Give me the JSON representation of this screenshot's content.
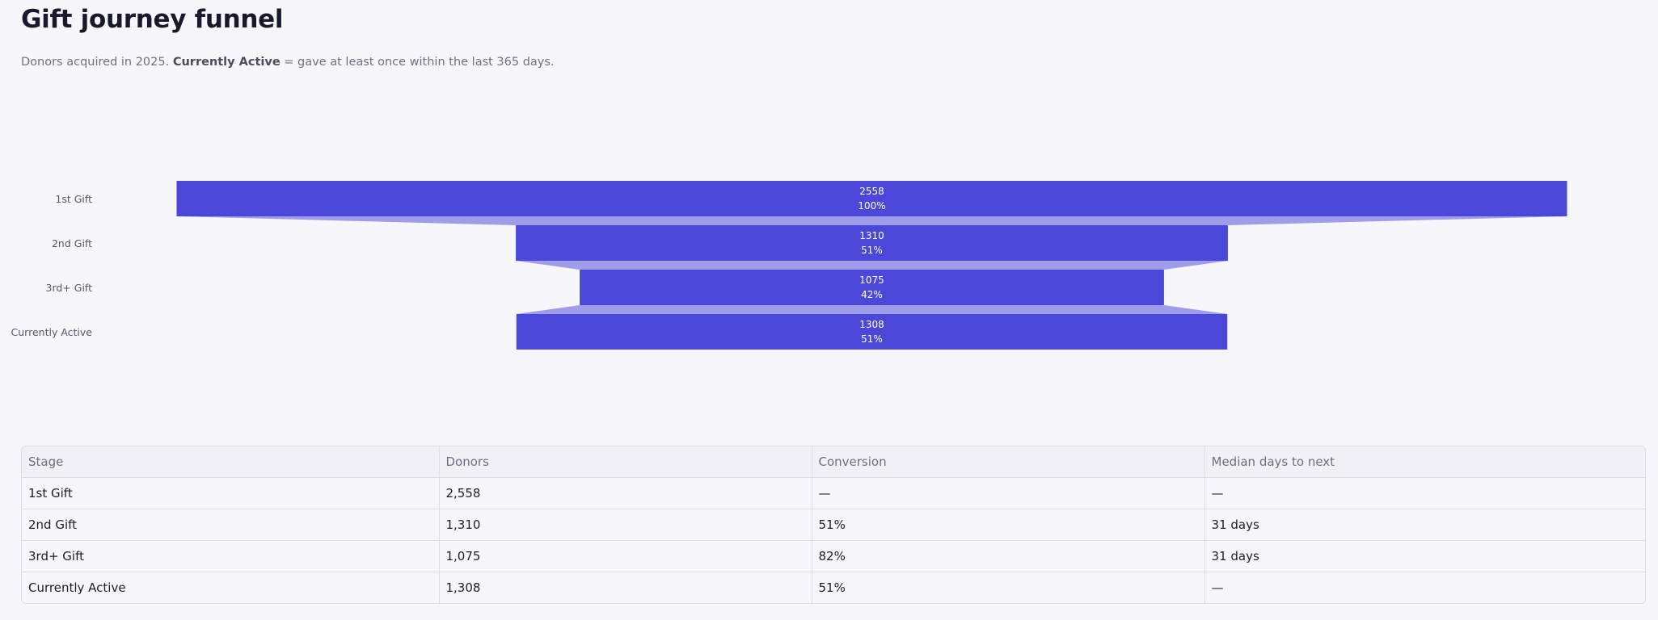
{
  "page": {
    "title": "Gift journey funnel",
    "subtitle_prefix": "Donors acquired in 2025. ",
    "subtitle_bold": "Currently Active",
    "subtitle_suffix": " = gave at least once within the last 365 days."
  },
  "colors": {
    "bar": "#4a47d9",
    "connector": "#9f9de9"
  },
  "chart_data": {
    "type": "funnel",
    "categories": [
      "1st Gift",
      "2nd Gift",
      "3rd+ Gift",
      "Currently Active"
    ],
    "values": [
      2558,
      1310,
      1075,
      1308
    ],
    "percent_labels": [
      "100%",
      "51%",
      "42%",
      "51%"
    ]
  },
  "table": {
    "columns": [
      "Stage",
      "Donors",
      "Conversion",
      "Median days to next"
    ],
    "rows": [
      [
        "1st Gift",
        "2,558",
        "—",
        "—"
      ],
      [
        "2nd Gift",
        "1,310",
        "51%",
        "31 days"
      ],
      [
        "3rd+ Gift",
        "1,075",
        "82%",
        "31 days"
      ],
      [
        "Currently Active",
        "1,308",
        "51%",
        "—"
      ]
    ]
  }
}
